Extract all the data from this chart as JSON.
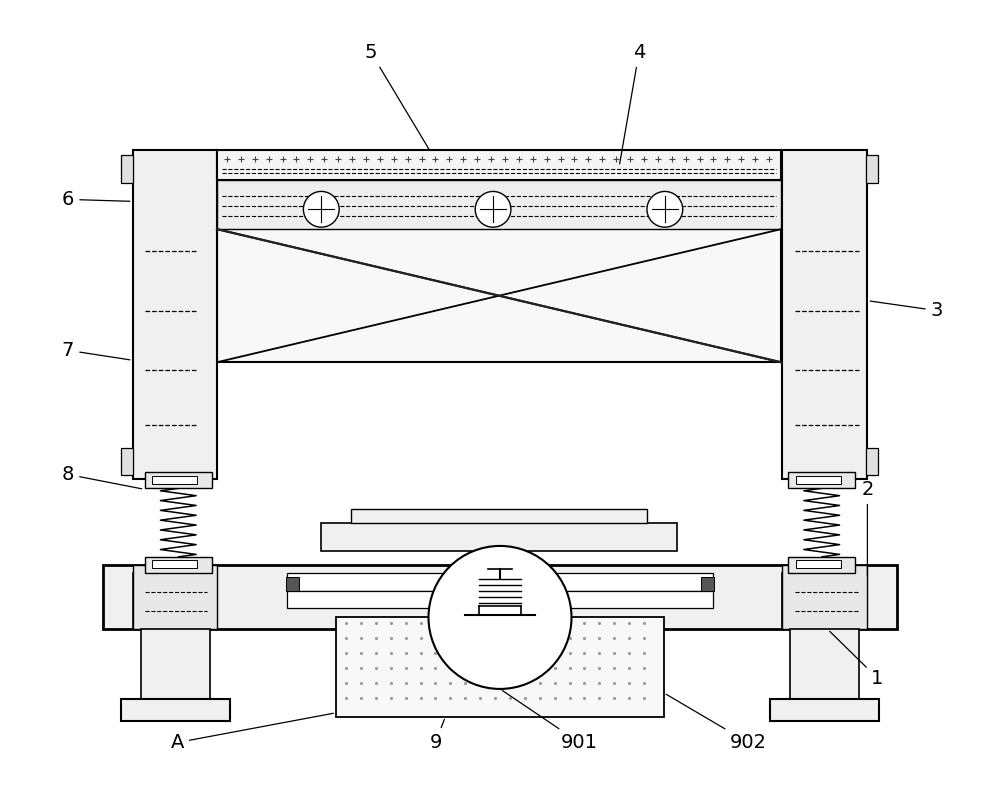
{
  "bg_color": "#ffffff",
  "line_color": "#000000",
  "figure_width": 10.0,
  "figure_height": 7.91
}
